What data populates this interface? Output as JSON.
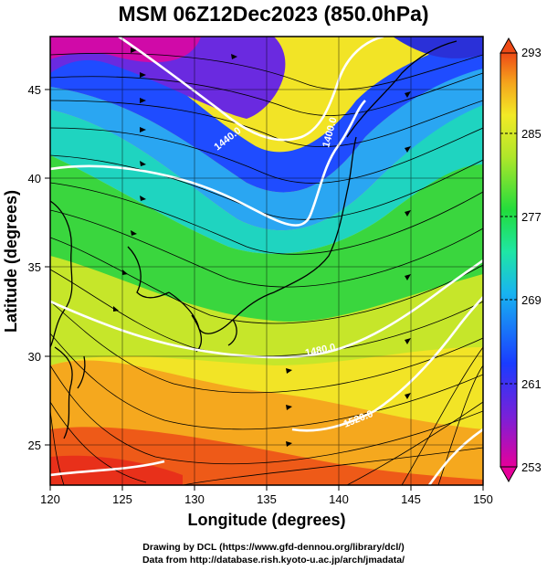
{
  "title": "MSM 06Z12Dec2023 (850.0hPa)",
  "axes": {
    "xlabel": "Longitude (degrees)",
    "ylabel": "Latitude  (degrees)",
    "xticks": [
      "120",
      "125",
      "130",
      "135",
      "140",
      "145",
      "150"
    ],
    "yticks": [
      "25",
      "30",
      "35",
      "40",
      "45"
    ],
    "xlim": [
      120,
      150
    ],
    "ylim": [
      22.4,
      47.6
    ]
  },
  "colorbar": {
    "labels": [
      "293",
      "285",
      "277",
      "269",
      "261",
      "253"
    ],
    "range": [
      253,
      293
    ],
    "colors": [
      "#e6009a",
      "#5a2be0",
      "#1a3cff",
      "#18b4f0",
      "#1fe6a4",
      "#22dc3c",
      "#a8e62a",
      "#f2ea26",
      "#f5a21c",
      "#ee4a16"
    ]
  },
  "contour_labels": [
    {
      "text": "1440.0",
      "lon": 132.2,
      "lat": 42.4
    },
    {
      "text": "1400.0",
      "lon": 139.2,
      "lat": 42.2
    },
    {
      "text": "1480.0",
      "lon": 139.7,
      "lat": 31.3
    },
    {
      "text": "1520.0",
      "lon": 141.0,
      "lat": 26.8
    }
  ],
  "credits": {
    "line1": "Drawing by DCL (https://www.gfd-dennou.org/library/dcl/)",
    "line2": "Data from http://database.rish.kyoto-u.ac.jp/arch/jmadata/"
  }
}
